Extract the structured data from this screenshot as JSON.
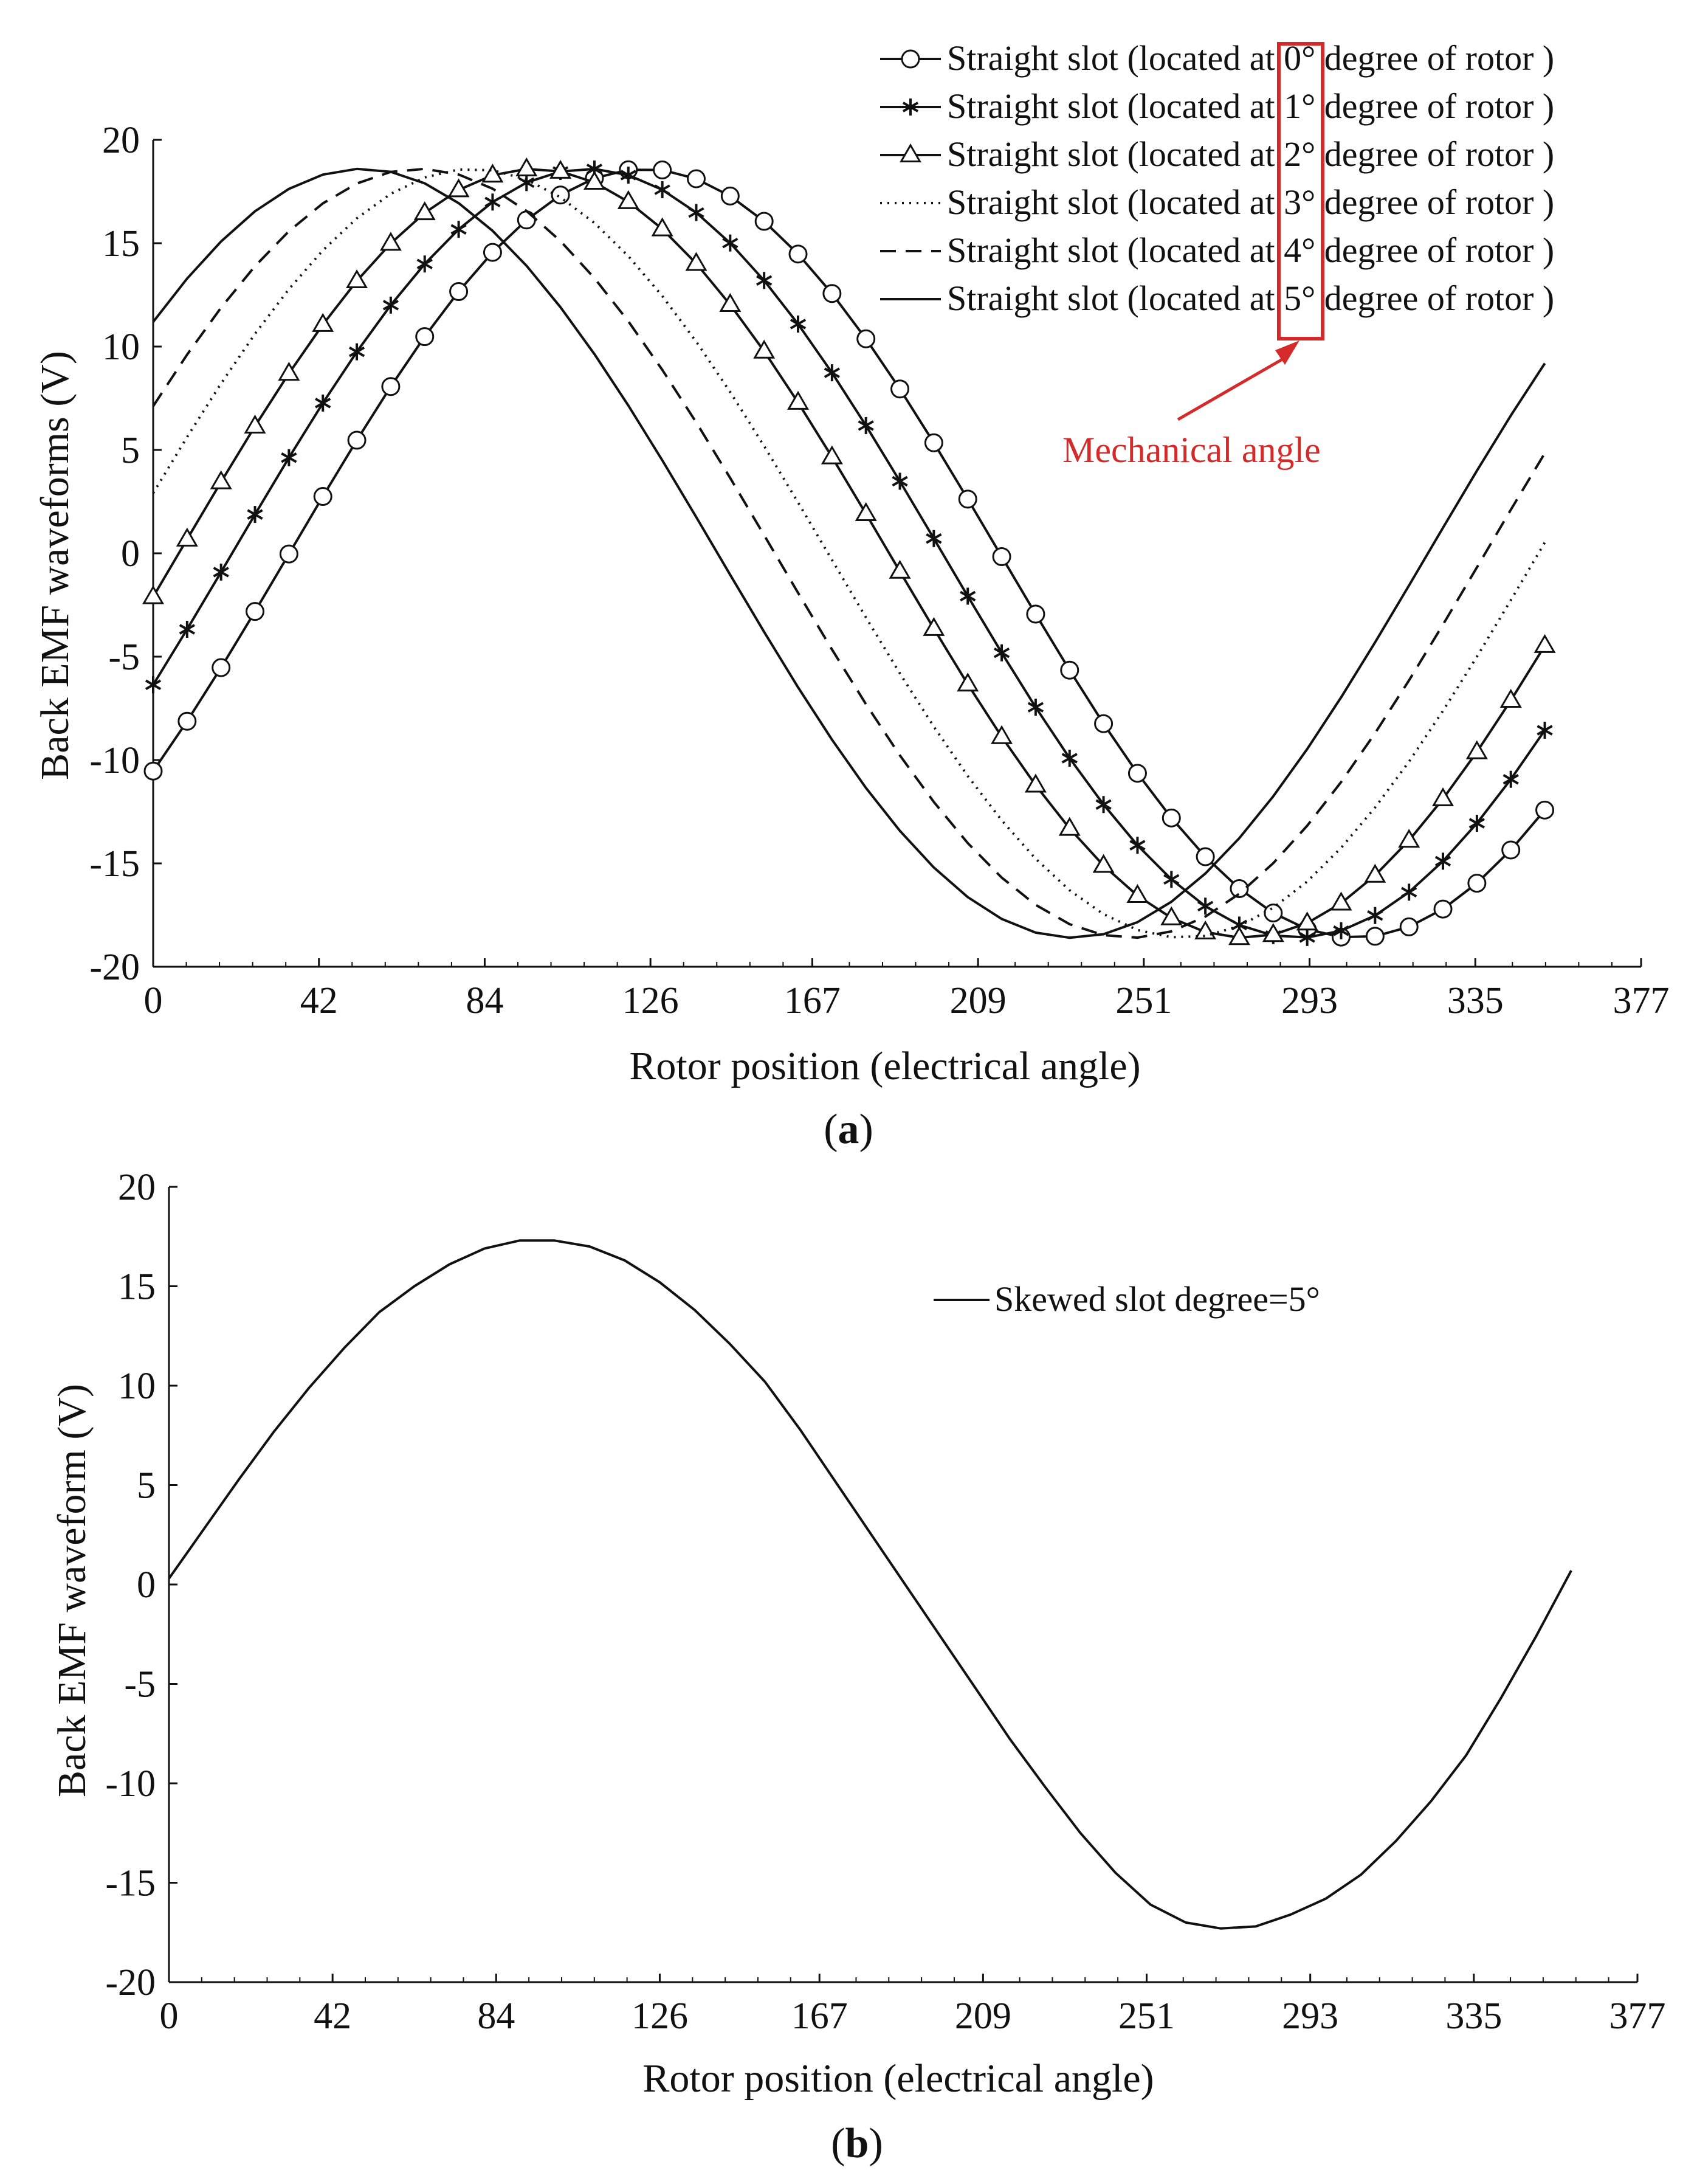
{
  "figure": {
    "panel_a_label_open": "(",
    "panel_a_label_letter": "a",
    "panel_a_label_close": ")",
    "panel_b_label_open": "(",
    "panel_b_label_letter": "b",
    "panel_b_label_close": ")",
    "annotation": "Mechanical angle",
    "colors": {
      "ink": "#111111",
      "annotation": "#d42a2a"
    }
  },
  "chart_data": [
    {
      "id": "a",
      "type": "line",
      "title": "",
      "xlabel": "Rotor position (electrical angle)",
      "ylabel": "Back EMF waveforms (V)",
      "xlim": [
        0,
        377
      ],
      "ylim": [
        -20,
        20
      ],
      "xticks": [
        0,
        42,
        84,
        126,
        167,
        209,
        251,
        293,
        335,
        377
      ],
      "yticks": [
        -20,
        -15,
        -10,
        -5,
        0,
        5,
        10,
        15,
        20
      ],
      "legend_position": "top-right",
      "model": {
        "amplitude": 18.6,
        "x_step": 8.6,
        "x_end": 360
      },
      "series": [
        {
          "name": "Straight slot (located at 0° degree of rotor )",
          "legend_prefix": "Straight slot (located at ",
          "angle_label": "0°",
          "legend_suffix": " degree of rotor )",
          "style": "solid",
          "marker": "circle",
          "phase_deg": -34.5
        },
        {
          "name": "Straight slot (located at 1° degree of rotor )",
          "legend_prefix": "Straight slot (located at ",
          "angle_label": "1°",
          "legend_suffix": " degree of rotor )",
          "style": "solid",
          "marker": "asterisk",
          "phase_deg": -20
        },
        {
          "name": "Straight slot (located at 2° degree of rotor )",
          "legend_prefix": "Straight slot (located at ",
          "angle_label": "2°",
          "legend_suffix": " degree of rotor )",
          "style": "solid",
          "marker": "triangle",
          "phase_deg": -6.5
        },
        {
          "name": "Straight slot (located at 3° degree of rotor )",
          "legend_prefix": "Straight slot (located at ",
          "angle_label": "3°",
          "legend_suffix": " degree of rotor )",
          "style": "dotted",
          "marker": "none",
          "phase_deg": 9
        },
        {
          "name": "Straight slot (located at 4° degree of rotor )",
          "legend_prefix": "Straight slot (located at ",
          "angle_label": "4°",
          "legend_suffix": " degree of rotor )",
          "style": "dashed",
          "marker": "none",
          "phase_deg": 22.5
        },
        {
          "name": "Straight slot (located at 5° degree of rotor )",
          "legend_prefix": "Straight slot (located at ",
          "angle_label": "5°",
          "legend_suffix": " degree of rotor )",
          "style": "solid",
          "marker": "none",
          "phase_deg": 37
        }
      ]
    },
    {
      "id": "b",
      "type": "line",
      "title": "",
      "xlabel": "Rotor position (electrical angle)",
      "ylabel": "Back EMF waveform (V)",
      "xlim": [
        0,
        377
      ],
      "ylim": [
        -20,
        20
      ],
      "xticks": [
        0,
        42,
        84,
        126,
        167,
        209,
        251,
        293,
        335,
        377
      ],
      "yticks": [
        -20,
        -15,
        -10,
        -5,
        0,
        5,
        10,
        15,
        20
      ],
      "legend_position": "top-right",
      "series": [
        {
          "name": "Skewed slot degree=5°",
          "style": "solid",
          "x": [
            0,
            9,
            18,
            27,
            36,
            45,
            54,
            63,
            72,
            81,
            90,
            99,
            108,
            117,
            126,
            135,
            144,
            153,
            162,
            171,
            180,
            189,
            198,
            207,
            216,
            225,
            234,
            243,
            252,
            261,
            270,
            279,
            288,
            297,
            306,
            315,
            324,
            333,
            342,
            351,
            360
          ],
          "values": [
            0.3,
            2.8,
            5.3,
            7.7,
            9.9,
            11.9,
            13.7,
            15.0,
            16.1,
            16.9,
            17.3,
            17.3,
            17.0,
            16.3,
            15.2,
            13.8,
            12.1,
            10.2,
            7.8,
            5.2,
            2.6,
            0.0,
            -2.6,
            -5.2,
            -7.8,
            -10.2,
            -12.5,
            -14.5,
            -16.1,
            -17.0,
            -17.3,
            -17.2,
            -16.6,
            -15.8,
            -14.6,
            -12.9,
            -10.9,
            -8.6,
            -5.7,
            -2.6,
            0.7
          ]
        }
      ]
    }
  ]
}
